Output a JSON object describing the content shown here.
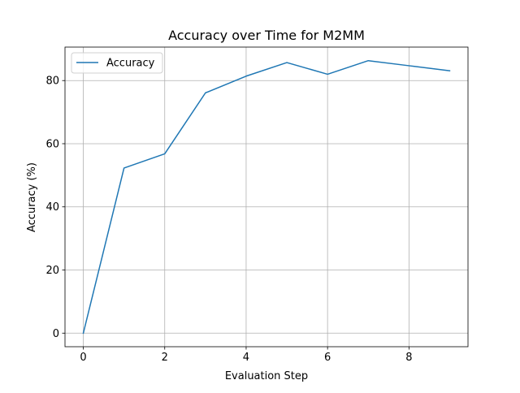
{
  "chart_data": {
    "type": "line",
    "title": "Accuracy over Time for M2MM",
    "xlabel": "Evaluation Step",
    "ylabel": "Accuracy (%)",
    "x": [
      0,
      1,
      2,
      3,
      4,
      5,
      6,
      7,
      8,
      9
    ],
    "series": [
      {
        "name": "Accuracy",
        "values": [
          0,
          52.3,
          56.8,
          76.1,
          81.4,
          85.7,
          82.0,
          86.3,
          84.7,
          83.1
        ],
        "color": "#1f77b4"
      }
    ],
    "xlim": [
      -0.45,
      9.45
    ],
    "ylim": [
      -4.3,
      90.6
    ],
    "xticks": [
      0,
      2,
      4,
      6,
      8
    ],
    "yticks": [
      0,
      20,
      40,
      60,
      80
    ],
    "grid": true,
    "legend_position": "upper-left"
  }
}
